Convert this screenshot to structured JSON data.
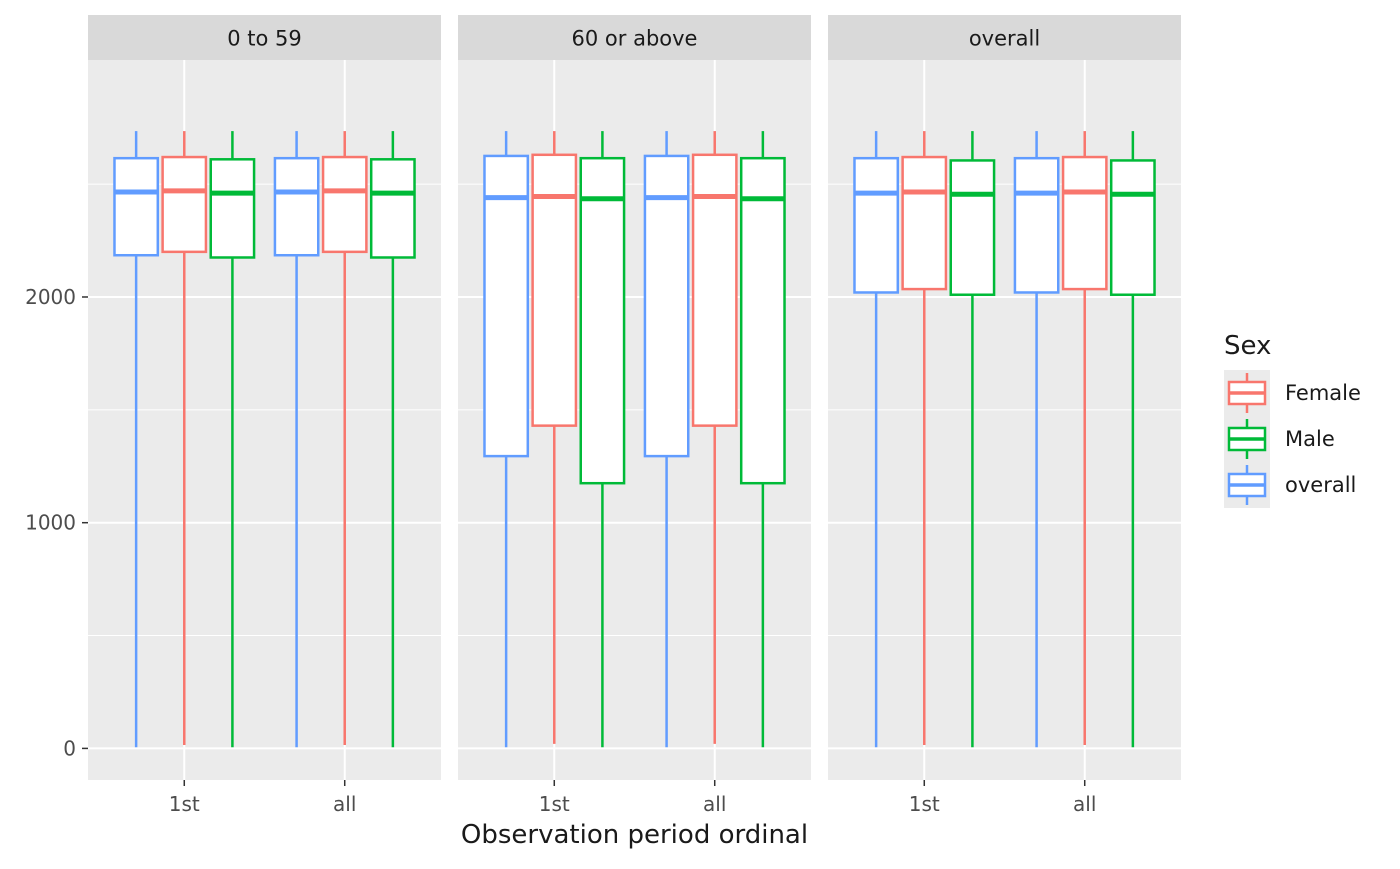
{
  "chart_data": {
    "type": "boxplot",
    "xlabel": "Observation period ordinal",
    "ylabel": "",
    "ylim": [
      -140,
      3050
    ],
    "y_ticks": [
      0,
      1000,
      2000
    ],
    "y_tick_labels": [
      "0",
      "1000",
      "2000"
    ],
    "categories": [
      "1st",
      "all"
    ],
    "legend": {
      "title": "Sex",
      "placement": "right",
      "entries": [
        {
          "name": "Female",
          "color": "#F8766D"
        },
        {
          "name": "Male",
          "color": "#00BA38"
        },
        {
          "name": "overall",
          "color": "#619CFF"
        }
      ]
    },
    "group_order": [
      "overall",
      "Female",
      "Male"
    ],
    "colors": {
      "Female": "#F8766D",
      "Male": "#00BA38",
      "overall": "#619CFF"
    },
    "background": "#EBEBEB",
    "strip_background": "#D9D9D9",
    "grid": true,
    "panels": [
      {
        "label": "0 to 59",
        "boxes": [
          {
            "category": "1st",
            "group": "overall",
            "min": 5,
            "q1": 2185,
            "median": 2465,
            "q3": 2615,
            "max": 2735
          },
          {
            "category": "1st",
            "group": "Female",
            "min": 15,
            "q1": 2200,
            "median": 2470,
            "q3": 2620,
            "max": 2735
          },
          {
            "category": "1st",
            "group": "Male",
            "min": 5,
            "q1": 2175,
            "median": 2460,
            "q3": 2610,
            "max": 2735
          },
          {
            "category": "all",
            "group": "overall",
            "min": 5,
            "q1": 2185,
            "median": 2465,
            "q3": 2615,
            "max": 2735
          },
          {
            "category": "all",
            "group": "Female",
            "min": 15,
            "q1": 2200,
            "median": 2470,
            "q3": 2620,
            "max": 2735
          },
          {
            "category": "all",
            "group": "Male",
            "min": 5,
            "q1": 2175,
            "median": 2460,
            "q3": 2610,
            "max": 2735
          }
        ]
      },
      {
        "label": "60 or above",
        "boxes": [
          {
            "category": "1st",
            "group": "overall",
            "min": 5,
            "q1": 1295,
            "median": 2440,
            "q3": 2625,
            "max": 2735
          },
          {
            "category": "1st",
            "group": "Female",
            "min": 20,
            "q1": 1430,
            "median": 2445,
            "q3": 2630,
            "max": 2735
          },
          {
            "category": "1st",
            "group": "Male",
            "min": 5,
            "q1": 1175,
            "median": 2435,
            "q3": 2615,
            "max": 2735
          },
          {
            "category": "all",
            "group": "overall",
            "min": 5,
            "q1": 1295,
            "median": 2440,
            "q3": 2625,
            "max": 2735
          },
          {
            "category": "all",
            "group": "Female",
            "min": 20,
            "q1": 1430,
            "median": 2445,
            "q3": 2630,
            "max": 2735
          },
          {
            "category": "all",
            "group": "Male",
            "min": 5,
            "q1": 1175,
            "median": 2435,
            "q3": 2615,
            "max": 2735
          }
        ]
      },
      {
        "label": "overall",
        "boxes": [
          {
            "category": "1st",
            "group": "overall",
            "min": 5,
            "q1": 2020,
            "median": 2460,
            "q3": 2615,
            "max": 2735
          },
          {
            "category": "1st",
            "group": "Female",
            "min": 15,
            "q1": 2035,
            "median": 2465,
            "q3": 2620,
            "max": 2735
          },
          {
            "category": "1st",
            "group": "Male",
            "min": 5,
            "q1": 2010,
            "median": 2455,
            "q3": 2605,
            "max": 2735
          },
          {
            "category": "all",
            "group": "overall",
            "min": 5,
            "q1": 2020,
            "median": 2460,
            "q3": 2615,
            "max": 2735
          },
          {
            "category": "all",
            "group": "Female",
            "min": 15,
            "q1": 2035,
            "median": 2465,
            "q3": 2620,
            "max": 2735
          },
          {
            "category": "all",
            "group": "Male",
            "min": 5,
            "q1": 2010,
            "median": 2455,
            "q3": 2605,
            "max": 2735
          }
        ]
      }
    ]
  }
}
